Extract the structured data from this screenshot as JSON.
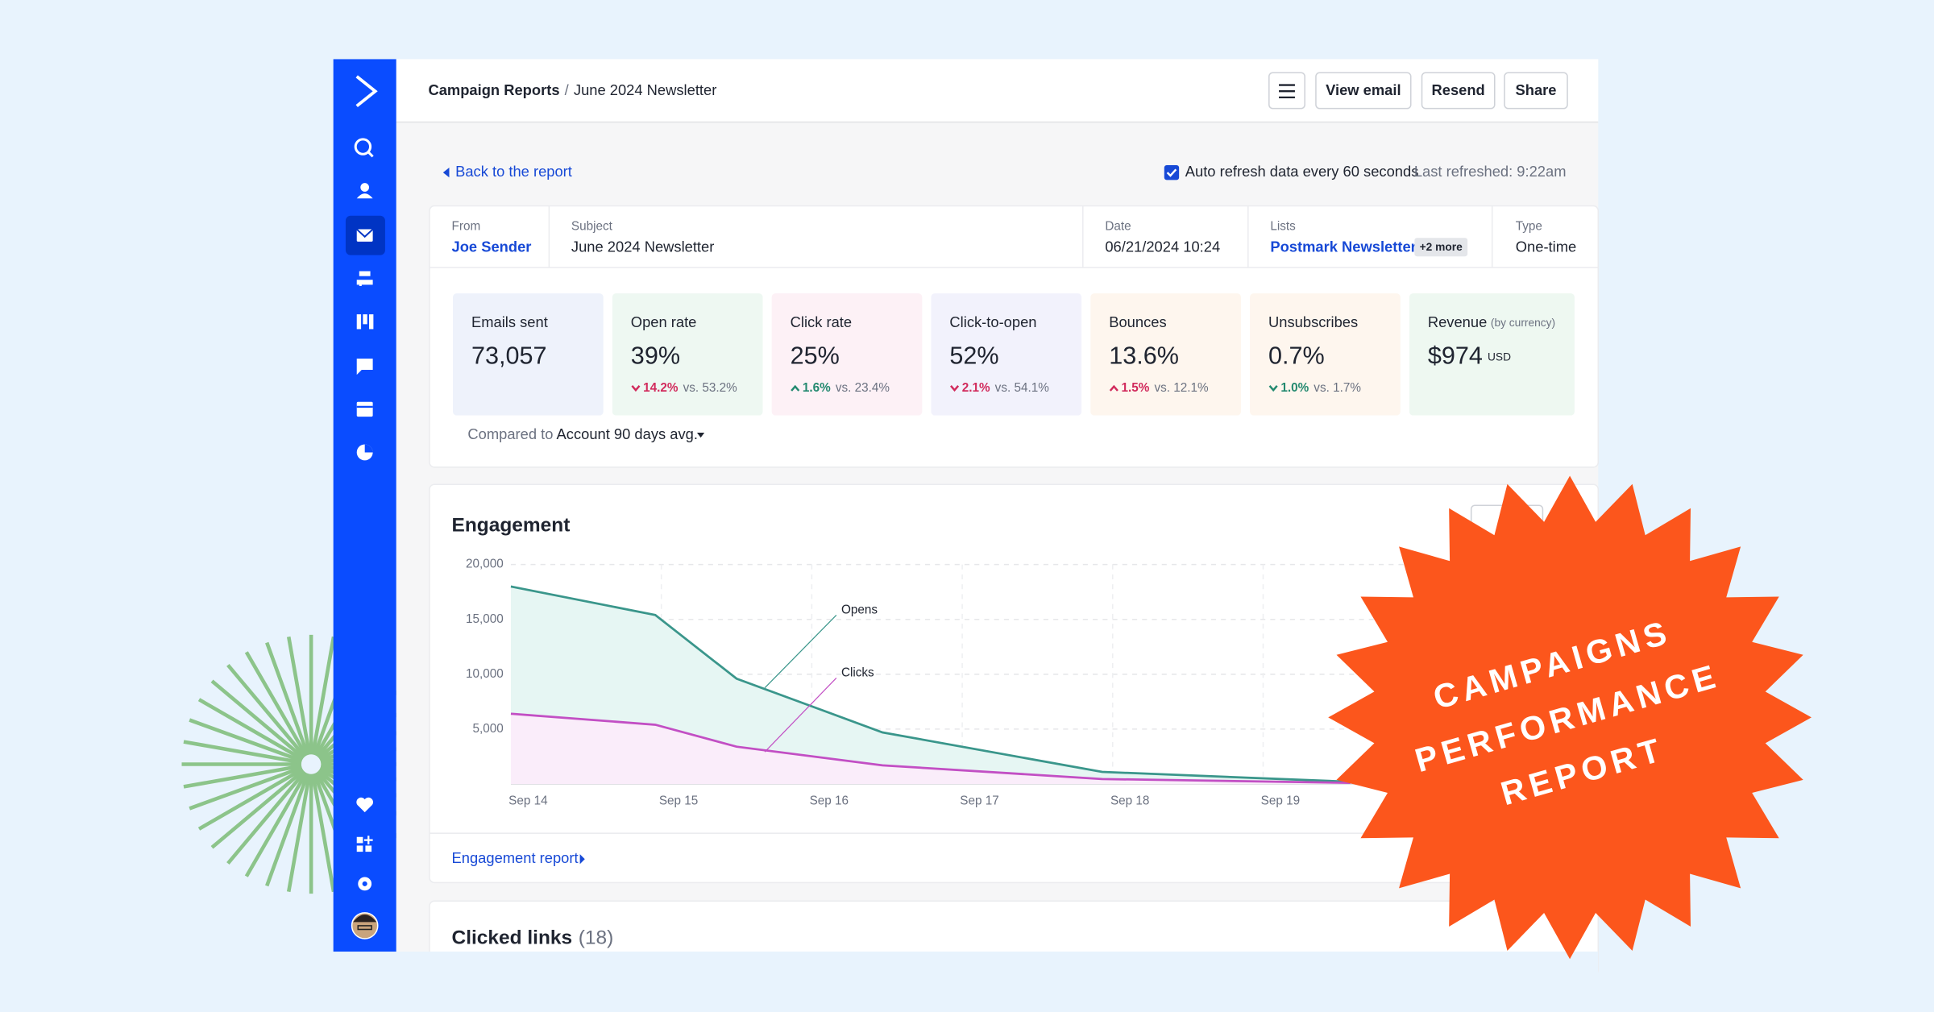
{
  "header": {
    "breadcrumb": [
      "Campaign Reports",
      "June 2024 Newsletter"
    ],
    "separator": "/",
    "buttons": [
      "View email",
      "Resend",
      "Share"
    ]
  },
  "toolbar": {
    "back_link": "Back to the report",
    "auto_refresh": "Auto refresh data every 60 seconds",
    "last_refreshed": "Last refreshed: 9:22am"
  },
  "details": [
    {
      "label": "From",
      "value": "Joe Sender"
    },
    {
      "label": "Subject",
      "value": "June 2024 Newsletter"
    },
    {
      "label": "Date",
      "value": "06/21/2024 10:24"
    },
    {
      "label": "Lists",
      "value": "Postmark Newsletter",
      "badge": "+2 more"
    },
    {
      "label": "Type",
      "value": "One-time"
    }
  ],
  "metrics": [
    {
      "label": "Emails sent",
      "value": "73,057",
      "color": "#eef2fb"
    },
    {
      "label": "Open rate",
      "value": "39%",
      "change": "14.2%",
      "direction": "down",
      "comparison": "vs. 53.2%",
      "change_color": "#d12a5c",
      "color": "#eef8f2"
    },
    {
      "label": "Click rate",
      "value": "25%",
      "change": "1.6%",
      "direction": "up",
      "comparison": "vs. 23.4%",
      "change_color": "#23896f",
      "color": "#fdf1f6"
    },
    {
      "label": "Click-to-open",
      "value": "52%",
      "change": "2.1%",
      "direction": "down",
      "comparison": "vs. 54.1%",
      "change_color": "#d12a5c",
      "color": "#f2f2fc"
    },
    {
      "label": "Bounces",
      "value": "13.6%",
      "change": "1.5%",
      "direction": "up",
      "comparison": "vs. 12.1%",
      "change_color": "#d12a5c",
      "color": "#fef6ee"
    },
    {
      "label": "Unsubscribes",
      "value": "0.7%",
      "change": "1.0%",
      "direction": "down",
      "comparison": "vs. 1.7%",
      "change_color": "#23896f",
      "color": "#fef6ee"
    },
    {
      "label": "Revenue",
      "note": "(by currency)",
      "value": "$974",
      "unit": "USD",
      "color": "#eef8f1"
    }
  ],
  "comparison": {
    "label": "Compared to",
    "value": "Account 90 days avg."
  },
  "engagement": {
    "title": "Engagement",
    "link": "Engagement report",
    "chart": {
      "type": "area",
      "x": [
        0,
        0.96,
        1.5,
        2.47,
        3.93,
        5.58
      ],
      "xlim": [
        0,
        6.85
      ],
      "xticks": [
        {
          "value": 0,
          "label": "Sep 14"
        },
        {
          "value": 1,
          "label": "Sep 15"
        },
        {
          "value": 2,
          "label": "Sep 16"
        },
        {
          "value": 3,
          "label": "Sep 17"
        },
        {
          "value": 4,
          "label": "Sep 18"
        },
        {
          "value": 5,
          "label": "Sep 19"
        }
      ],
      "ylim": [
        0,
        20000
      ],
      "yticks": [
        {
          "value": 5000,
          "label": "5,000"
        },
        {
          "value": 10000,
          "label": "10,000"
        },
        {
          "value": 15000,
          "label": "15,000"
        },
        {
          "value": 20000,
          "label": "20,000"
        }
      ],
      "grid": true,
      "series": [
        {
          "name": "Opens",
          "color": "#3a968b",
          "fill": "#e6f6f3",
          "values": [
            18000,
            15400,
            9600,
            4700,
            1100,
            200
          ]
        },
        {
          "name": "Clicks",
          "color": "#c24fc4",
          "fill": "#faedfa",
          "values": [
            6400,
            5400,
            3400,
            1700,
            450,
            100
          ]
        }
      ]
    }
  },
  "clicked_links": {
    "title": "Clicked links",
    "count": "(18)"
  },
  "badge": {
    "lines": [
      "CAMPAIGNS",
      "PERFORMANCE",
      "REPORT"
    ]
  }
}
